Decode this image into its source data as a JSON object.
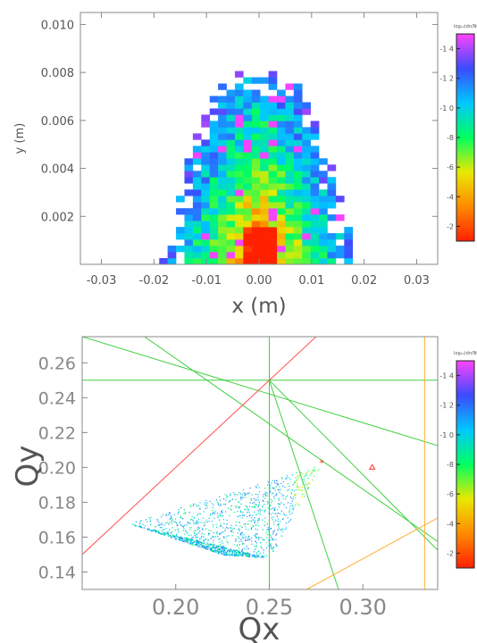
{
  "chart_data": [
    {
      "type": "heatmap",
      "xlabel": "x  (m)",
      "ylabel": "y  (m)",
      "xlim": [
        -0.034,
        0.034
      ],
      "ylim": [
        0,
        0.0105
      ],
      "xticks": [
        -0.03,
        -0.02,
        -0.01,
        0.0,
        0.01,
        0.02,
        0.03
      ],
      "xtick_labels": [
        "-0.03",
        "-0.02",
        "-0.01",
        "0.00",
        "0.01",
        "0.02",
        "0.03"
      ],
      "yticks": [
        0.002,
        0.004,
        0.006,
        0.008,
        0.01
      ],
      "ytick_labels": [
        "0.002",
        "0.004",
        "0.006",
        "0.008",
        "0.010"
      ],
      "bin_size": [
        0.0016,
        0.00026
      ],
      "distribution": {
        "x_extent": [
          -0.019,
          0.017
        ],
        "y_extent": [
          0,
          0.0078
        ],
        "peak": [
          0.0,
          0.0002
        ],
        "shape": "bell-shaped footprint, narrowing with y; highest values near x=0, y=0"
      },
      "colorbar": {
        "label": "log₁₀(dn/Ntot)",
        "ticks": [
          -2,
          -4,
          -6,
          -8,
          -10,
          -12,
          -14
        ],
        "tick_labels": [
          "-2",
          "-4",
          "-6",
          "-8",
          "-1 0",
          "-1 2",
          "-1 4"
        ],
        "range": [
          -15,
          -1
        ],
        "colors_top_to_bottom": [
          "#ff44ff",
          "#3b4bff",
          "#00c8ff",
          "#00ff60",
          "#e8e800",
          "#ff8a00",
          "#ff2000"
        ]
      }
    },
    {
      "type": "scatter",
      "xlabel": "Qx",
      "ylabel": "Qy",
      "xlim": [
        0.15,
        0.34
      ],
      "ylim": [
        0.13,
        0.275
      ],
      "xticks": [
        0.2,
        0.25,
        0.3
      ],
      "xtick_labels": [
        "0.20",
        "0.25",
        "0.30"
      ],
      "yticks": [
        0.14,
        0.16,
        0.18,
        0.2,
        0.22,
        0.24,
        0.26
      ],
      "ytick_labels": [
        "0.14",
        "0.16",
        "0.18",
        "0.20",
        "0.22",
        "0.24",
        "0.26"
      ],
      "points_region": {
        "vertices": [
          [
            0.175,
            0.168
          ],
          [
            0.278,
            0.202
          ],
          [
            0.25,
            0.148
          ],
          [
            0.225,
            0.15
          ]
        ],
        "tip": [
          0.278,
          0.202
        ]
      },
      "markers": [
        {
          "symbol": "star",
          "x": 0.278,
          "y": 0.203,
          "color": "#ff3030"
        },
        {
          "symbol": "triangle",
          "x": 0.305,
          "y": 0.2,
          "color": "#ff3030"
        }
      ],
      "resonance_lines": [
        {
          "color": "#40d040",
          "points": [
            [
              0.25,
              0.13
            ],
            [
              0.25,
              0.275
            ]
          ]
        },
        {
          "color": "#40d040",
          "points": [
            [
              0.15,
              0.25
            ],
            [
              0.34,
              0.25
            ]
          ]
        },
        {
          "color": "#40d040",
          "points": [
            [
              0.15,
              0.275
            ],
            [
              0.34,
              0.2125
            ]
          ]
        },
        {
          "color": "#40d040",
          "points": [
            [
              0.15,
              0.3
            ],
            [
              0.34,
              0.1575
            ]
          ]
        },
        {
          "color": "#40d040",
          "points": [
            [
              0.25,
              0.25
            ],
            [
              0.287,
              0.13
            ]
          ]
        },
        {
          "color": "#40d040",
          "points": [
            [
              0.25,
              0.25
            ],
            [
              0.34,
              0.1525
            ]
          ]
        },
        {
          "color": "#ff5050",
          "points": [
            [
              0.15,
              0.15
            ],
            [
              0.275,
              0.275
            ]
          ]
        },
        {
          "color": "#ffb030",
          "points": [
            [
              0.333,
              0.13
            ],
            [
              0.333,
              0.275
            ]
          ]
        },
        {
          "color": "#ffb030",
          "points": [
            [
              0.27,
              0.13
            ],
            [
              0.34,
              0.171
            ]
          ]
        }
      ],
      "colorbar": {
        "label": "log₁₀(dn/Ntot)",
        "ticks": [
          -2,
          -4,
          -6,
          -8,
          -10,
          -12,
          -14
        ],
        "tick_labels": [
          "-2",
          "-4",
          "-6",
          "-8",
          "-1 0",
          "-1 2",
          "-1 4"
        ],
        "range": [
          -15,
          -1
        ],
        "colors_top_to_bottom": [
          "#ff44ff",
          "#3b4bff",
          "#00c8ff",
          "#00ff60",
          "#e8e800",
          "#ff8a00",
          "#ff2000"
        ]
      }
    }
  ]
}
